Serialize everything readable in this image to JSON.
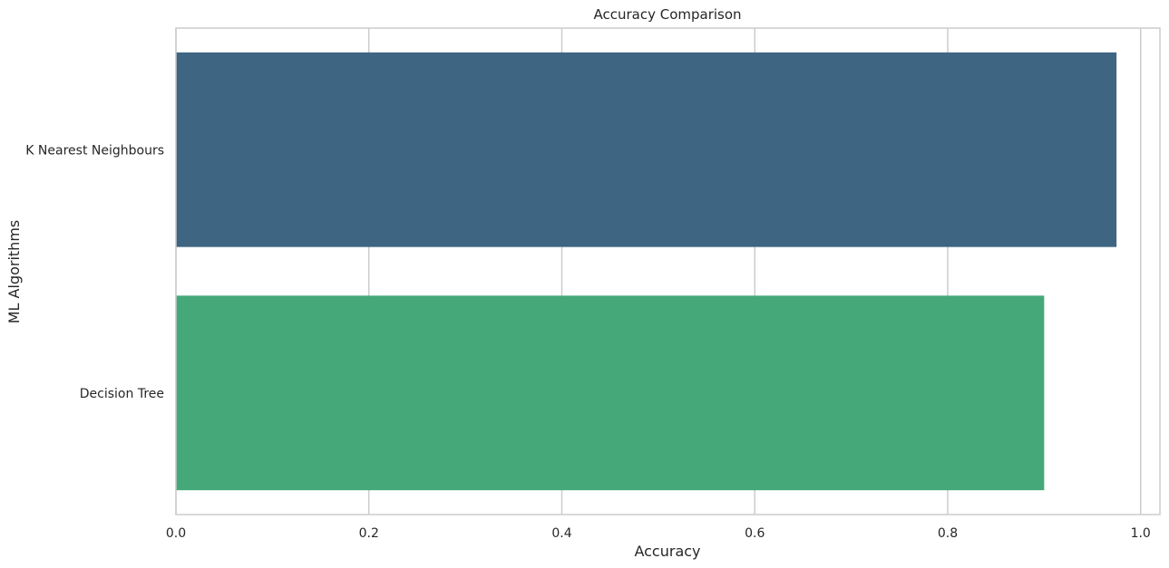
{
  "chart_data": {
    "type": "bar",
    "orientation": "horizontal",
    "title": "Accuracy Comparison",
    "xlabel": "Accuracy",
    "ylabel": "ML Algorithms",
    "categories": [
      "K Nearest Neighbours",
      "Decision Tree"
    ],
    "values": [
      0.975,
      0.9
    ],
    "colors": [
      "#3e6682",
      "#45a879"
    ],
    "xlim": [
      0,
      1.02
    ],
    "xticks": [
      0.0,
      0.2,
      0.4,
      0.6,
      0.8,
      1.0
    ],
    "xtick_labels": [
      "0.0",
      "0.2",
      "0.4",
      "0.6",
      "0.8",
      "1.0"
    ],
    "grid": true,
    "style": {
      "grid_color": "#cccccc",
      "frame_color": "#cccccc"
    }
  }
}
